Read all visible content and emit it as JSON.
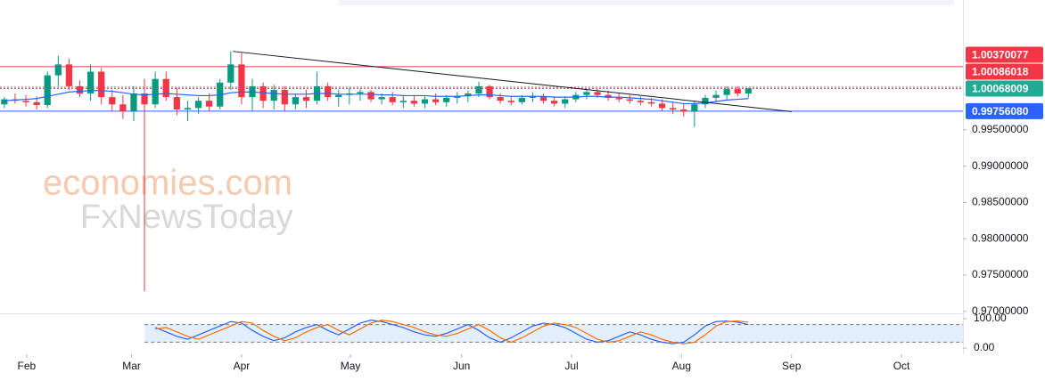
{
  "chart_data": {
    "type": "candlestick",
    "categories": [
      null,
      null,
      null,
      null,
      null,
      null,
      null,
      null,
      null,
      null,
      null,
      null,
      null,
      null,
      null,
      null,
      null,
      null,
      null,
      null,
      null,
      null,
      null,
      null,
      null,
      null,
      null,
      null,
      null,
      null,
      null,
      null,
      null,
      null,
      null,
      null,
      null,
      null,
      null,
      null,
      null,
      null,
      null,
      null,
      null,
      null,
      null,
      null,
      null,
      null,
      null,
      null,
      null,
      null,
      null,
      null,
      null,
      null,
      null,
      null,
      null,
      null,
      null,
      null,
      null,
      null,
      null,
      null,
      null,
      null
    ],
    "open": [
      0.9985,
      0.9992,
      0.999,
      0.9988,
      0.9984,
      1.0025,
      1.004,
      1.001,
      1.0,
      1.003,
      0.9995,
      0.9985,
      0.9975,
      1.0,
      0.9985,
      1.002,
      0.9995,
      0.9978,
      0.998,
      0.999,
      0.9982,
      1.0015,
      1.004,
      0.9995,
      1.001,
      0.999,
      1.0005,
      0.9985,
      0.9995,
      0.999,
      1.001,
      0.9995,
      0.9998,
      1.0,
      1.0002,
      0.9992,
      0.9995,
      0.9988,
      0.999,
      0.9986,
      0.9992,
      0.9988,
      0.9994,
      0.9996,
      1.0,
      1.001,
      0.9995,
      0.999,
      0.9988,
      0.9994,
      0.9996,
      0.999,
      0.9986,
      0.9992,
      0.9998,
      1.0002,
      0.9998,
      0.9994,
      0.9992,
      0.999,
      0.9988,
      0.9986,
      0.998,
      0.9978,
      0.9975,
      0.9985,
      0.9994,
      0.9998,
      1.0006,
      1.0
    ],
    "high": [
      0.9995,
      1.0,
      0.9998,
      0.9996,
      1.003,
      1.0052,
      1.0048,
      1.0018,
      1.004,
      1.0035,
      1.0005,
      0.9998,
      1.001,
      1.002,
      1.003,
      1.003,
      1.0008,
      0.999,
      0.9995,
      1.0,
      1.002,
      1.0058,
      1.0056,
      1.002,
      1.0015,
      1.0012,
      1.001,
      1.0,
      1.0005,
      1.003,
      1.0015,
      1.0005,
      1.0008,
      1.0006,
      1.0005,
      1.0,
      1.0002,
      0.9998,
      0.9998,
      0.9996,
      1.0,
      0.9998,
      1.0002,
      1.0004,
      1.0016,
      1.0012,
      1.0,
      0.9996,
      0.9998,
      1.0002,
      1.0,
      0.9996,
      0.9996,
      1.0002,
      1.0006,
      1.0006,
      1.0004,
      1.0,
      0.9998,
      0.9996,
      0.9994,
      0.9992,
      0.9988,
      0.9986,
      0.999,
      0.9998,
      1.0004,
      1.001,
      1.001,
      1.0008
    ],
    "low": [
      0.998,
      0.9986,
      0.9982,
      0.9978,
      0.998,
      1.001,
      1.0005,
      0.9995,
      0.999,
      0.9985,
      0.9975,
      0.9965,
      0.9962,
      0.9728,
      0.998,
      0.999,
      0.997,
      0.9962,
      0.9972,
      0.9975,
      0.9978,
      1.0005,
      0.9985,
      0.9975,
      0.998,
      0.9978,
      0.9975,
      0.9978,
      0.998,
      0.9985,
      0.999,
      0.9982,
      0.9985,
      0.999,
      0.9988,
      0.9985,
      0.9984,
      0.998,
      0.9982,
      0.998,
      0.9984,
      0.9982,
      0.9986,
      0.9988,
      0.9995,
      0.9992,
      0.9986,
      0.9984,
      0.9985,
      0.9988,
      0.9986,
      0.9982,
      0.998,
      0.9988,
      0.9992,
      0.9994,
      0.999,
      0.9988,
      0.9986,
      0.9984,
      0.9982,
      0.9976,
      0.9972,
      0.9968,
      0.9954,
      0.998,
      0.9988,
      0.9992,
      0.9996,
      0.9994
    ],
    "close": [
      0.9992,
      0.999,
      0.9988,
      0.9984,
      1.0025,
      1.004,
      1.001,
      1.0,
      1.003,
      0.9995,
      0.9985,
      0.9975,
      1.0,
      0.9985,
      1.002,
      0.9995,
      0.9978,
      0.998,
      0.999,
      0.9982,
      1.0015,
      1.004,
      0.9995,
      1.001,
      0.999,
      1.0005,
      0.9985,
      0.9995,
      0.999,
      1.001,
      0.9995,
      0.9998,
      1.0,
      1.0002,
      0.9992,
      0.9995,
      0.9988,
      0.999,
      0.9986,
      0.9992,
      0.9988,
      0.9994,
      0.9996,
      1.0,
      1.001,
      0.9995,
      0.999,
      0.9988,
      0.9994,
      0.9996,
      0.999,
      0.9986,
      0.9992,
      0.9998,
      1.0002,
      0.9998,
      0.9994,
      0.9992,
      0.999,
      0.9988,
      0.9986,
      0.998,
      0.9978,
      0.9975,
      0.9985,
      0.9994,
      0.9998,
      1.0006,
      1.0,
      1.0007
    ],
    "up_color": "#089981",
    "down_color": "#f23645",
    "ma": {
      "color": "#2962ff",
      "values": [
        0.999,
        0.9991,
        0.9992,
        0.9993,
        0.9996,
        0.9999,
        1.0002,
        1.0003,
        1.0004,
        1.0004,
        1.0003,
        1.0001,
        0.9999,
        0.9998,
        0.9999,
        1.0,
        0.9999,
        0.9998,
        0.9997,
        0.9997,
        0.9998,
        1.0001,
        1.0002,
        1.0002,
        1.0001,
        1.0,
        0.9999,
        0.9999,
        0.9999,
        1.0,
        1.0,
        0.9999,
        0.9999,
        0.9999,
        0.9999,
        0.9998,
        0.9998,
        0.9997,
        0.9997,
        0.9997,
        0.9996,
        0.9996,
        0.9996,
        0.9997,
        0.9998,
        0.9998,
        0.9997,
        0.9996,
        0.9996,
        0.9996,
        0.9996,
        0.9995,
        0.9995,
        0.9995,
        0.9996,
        0.9996,
        0.9995,
        0.9995,
        0.9994,
        0.9993,
        0.9992,
        0.999,
        0.9988,
        0.9986,
        0.9986,
        0.9987,
        0.9989,
        0.9991,
        0.9992,
        0.9993
      ]
    },
    "trendline": {
      "x": [
        21.2,
        73
      ],
      "y": [
        1.0058,
        0.9975
      ],
      "color": "#131722"
    },
    "levels": [
      {
        "value": 1.00370077,
        "label": "1.00370077",
        "color": "#f23645",
        "style": "solid"
      },
      {
        "value": 1.00086018,
        "label": "1.00086018",
        "color": "#f23645",
        "style": "dotted"
      },
      {
        "value": 1.00068009,
        "label": "1.00068009",
        "color": "#22ab94",
        "style": "dotted"
      },
      {
        "value": 0.9975608,
        "label": "0.99756080",
        "color": "#2962ff",
        "style": "solid"
      }
    ],
    "xlim": [
      -0.4,
      88.9
    ],
    "ylim": [
      0.96973,
      1.01287
    ],
    "xticks": [
      {
        "value": 2.07,
        "label": "Feb"
      },
      {
        "value": 11.8,
        "label": "Mar"
      },
      {
        "value": 22,
        "label": "Apr"
      },
      {
        "value": 32.1,
        "label": "May"
      },
      {
        "value": 42.4,
        "label": "Jun"
      },
      {
        "value": 52.6,
        "label": "Jul"
      },
      {
        "value": 62.8,
        "label": "Aug"
      },
      {
        "value": 73,
        "label": "Sep"
      },
      {
        "value": 83.2,
        "label": "Oct"
      }
    ],
    "yticks": [
      {
        "value": 0.995,
        "label": "0.99500000"
      },
      {
        "value": 0.99,
        "label": "0.99000000"
      },
      {
        "value": 0.985,
        "label": "0.98500000"
      },
      {
        "value": 0.98,
        "label": "0.98000000"
      },
      {
        "value": 0.975,
        "label": "0.97500000"
      },
      {
        "value": 0.97,
        "label": "0.97000000"
      }
    ],
    "oscillator": {
      "ylim": [
        -21,
        115
      ],
      "band": [
        20,
        80
      ],
      "yticks": [
        {
          "value": 100,
          "label": "100.00"
        },
        {
          "value": 0,
          "label": "0.00"
        }
      ],
      "series": [
        {
          "color": "#2962ff",
          "values": [
            null,
            null,
            null,
            null,
            null,
            null,
            null,
            null,
            null,
            null,
            null,
            null,
            null,
            null,
            70,
            55,
            40,
            30,
            45,
            60,
            75,
            90,
            85,
            60,
            40,
            25,
            35,
            55,
            70,
            80,
            60,
            45,
            65,
            85,
            95,
            90,
            80,
            70,
            55,
            45,
            40,
            50,
            65,
            80,
            60,
            35,
            20,
            35,
            55,
            75,
            85,
            80,
            70,
            50,
            30,
            20,
            25,
            40,
            55,
            45,
            30,
            20,
            15,
            20,
            45,
            75,
            90,
            92,
            88,
            80
          ]
        },
        {
          "color": "#ff6d00",
          "values": [
            null,
            null,
            null,
            null,
            null,
            null,
            null,
            null,
            null,
            null,
            null,
            null,
            null,
            null,
            65,
            70,
            55,
            40,
            30,
            45,
            60,
            75,
            90,
            85,
            60,
            40,
            25,
            35,
            55,
            70,
            80,
            60,
            45,
            65,
            85,
            95,
            90,
            80,
            70,
            55,
            45,
            40,
            50,
            65,
            80,
            60,
            35,
            20,
            35,
            55,
            75,
            85,
            80,
            70,
            50,
            30,
            20,
            25,
            40,
            55,
            45,
            30,
            20,
            15,
            20,
            45,
            75,
            90,
            92,
            88
          ]
        }
      ]
    }
  },
  "watermark": {
    "line1": "economies.com",
    "line2": "FxNewsToday"
  }
}
